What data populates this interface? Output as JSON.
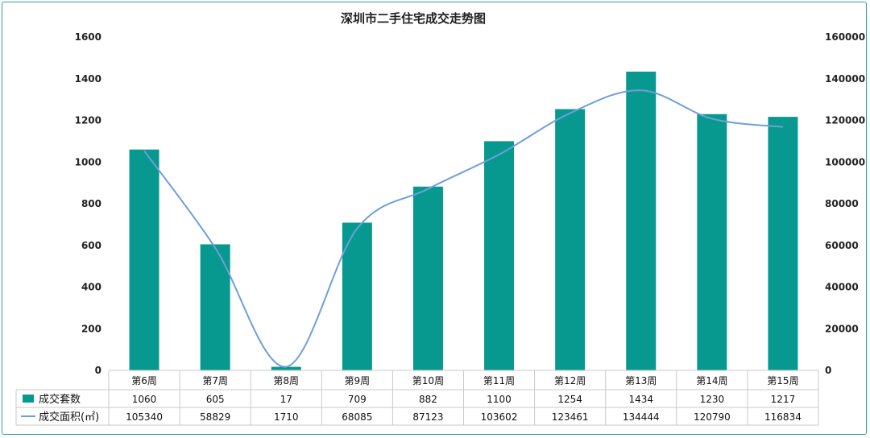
{
  "chart_data": {
    "type": "bar+line",
    "title": "深圳市二手住宅成交走势图",
    "categories": [
      "第6周",
      "第7周",
      "第8周",
      "第9周",
      "第10周",
      "第11周",
      "第12周",
      "第13周",
      "第14周",
      "第15周"
    ],
    "series": [
      {
        "name": "成交套数",
        "type": "bar",
        "axis": "left",
        "color": "#07998f",
        "values": [
          1060,
          605,
          17,
          709,
          882,
          1100,
          1254,
          1434,
          1230,
          1217
        ]
      },
      {
        "name": "成交面积(㎡)",
        "type": "line",
        "axis": "right",
        "color": "#6f9fd8",
        "values": [
          105340,
          58829,
          1710,
          68085,
          87123,
          103602,
          123461,
          134444,
          120790,
          116834
        ]
      }
    ],
    "y_left": {
      "min": 0,
      "max": 1600,
      "ticks": [
        "0",
        "200",
        "400",
        "600",
        "800",
        "1000",
        "1200",
        "1400",
        "1600"
      ]
    },
    "y_right": {
      "min": 0,
      "max": 160000,
      "ticks": [
        "0",
        "20000",
        "40000",
        "60000",
        "80000",
        "100000",
        "120000",
        "140000",
        "160000"
      ]
    },
    "data_table": true,
    "grid": false
  }
}
